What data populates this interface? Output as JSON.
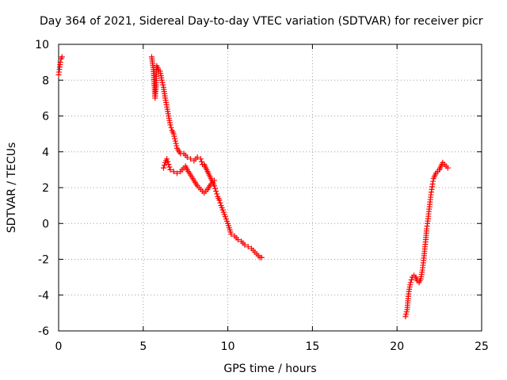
{
  "chart_data": {
    "type": "scatter",
    "title": "Day 364 of 2021, Sidereal Day-to-day VTEC variation (SDTVAR) for receiver picr",
    "xlabel": "GPS time / hours",
    "ylabel": "SDTVAR / TECUs",
    "xlim": [
      0,
      25
    ],
    "ylim": [
      -6,
      10
    ],
    "xticks": [
      0,
      5,
      10,
      15,
      20,
      25
    ],
    "yticks": [
      -6,
      -4,
      -2,
      0,
      2,
      4,
      6,
      8,
      10
    ],
    "grid": true,
    "marker": "+",
    "color": "#ff0000",
    "series": [
      {
        "name": "SDTVAR",
        "segments": [
          {
            "x": [
              0.0,
              0.05,
              0.1,
              0.15,
              0.2
            ],
            "y": [
              8.3,
              8.6,
              9.0,
              9.2,
              9.3
            ]
          },
          {
            "x": [
              5.5,
              5.6,
              5.7,
              5.75,
              5.8,
              5.9,
              6.0,
              6.1,
              6.2,
              6.3,
              6.4,
              6.5,
              6.6,
              6.7,
              6.8,
              6.9,
              7.0,
              7.2,
              7.4,
              7.6,
              7.8,
              8.0,
              8.2,
              8.4,
              8.5,
              8.6,
              8.7,
              8.8,
              8.9,
              9.0,
              9.1,
              9.2,
              9.3,
              9.4,
              9.5,
              9.6,
              9.8,
              10.0,
              10.2,
              10.4,
              10.6,
              10.8,
              11.0,
              11.2,
              11.4,
              11.5,
              11.6,
              11.7,
              11.8,
              11.9,
              12.0
            ],
            "y": [
              9.3,
              8.6,
              7.0,
              7.5,
              8.8,
              8.6,
              8.5,
              8.0,
              7.6,
              7.0,
              6.5,
              6.0,
              5.5,
              5.2,
              5.0,
              4.6,
              4.2,
              3.9,
              3.9,
              3.7,
              3.6,
              3.5,
              3.7,
              3.6,
              3.3,
              3.3,
              3.1,
              2.9,
              2.7,
              2.5,
              2.3,
              2.1,
              1.8,
              1.5,
              1.3,
              1.0,
              0.5,
              0.0,
              -0.6,
              -0.7,
              -0.9,
              -1.0,
              -1.2,
              -1.3,
              -1.4,
              -1.5,
              -1.6,
              -1.7,
              -1.8,
              -1.9,
              -1.9
            ]
          },
          {
            "x": [
              6.2,
              6.3,
              6.4,
              6.5,
              6.6,
              6.8,
              7.0,
              7.2,
              7.4,
              7.5,
              7.6,
              7.8,
              8.0,
              8.2,
              8.4,
              8.6,
              8.8,
              9.0,
              9.2
            ],
            "y": [
              3.1,
              3.4,
              3.6,
              3.3,
              3.0,
              2.9,
              2.8,
              2.9,
              3.1,
              3.2,
              3.0,
              2.7,
              2.4,
              2.1,
              1.9,
              1.7,
              1.9,
              2.2,
              2.4
            ]
          },
          {
            "x": [
              20.5,
              20.6,
              20.65,
              20.7,
              20.8,
              20.9,
              21.0,
              21.1,
              21.2,
              21.3,
              21.4,
              21.5,
              21.55,
              21.6,
              21.65,
              21.7,
              21.75,
              21.8,
              21.85,
              21.9,
              21.95,
              22.0,
              22.05,
              22.1,
              22.15,
              22.2,
              22.3,
              22.4,
              22.5,
              22.6,
              22.7,
              22.8,
              22.9,
              23.0
            ],
            "y": [
              -5.2,
              -4.8,
              -4.2,
              -3.8,
              -3.3,
              -3.0,
              -2.9,
              -3.0,
              -3.2,
              -3.3,
              -3.1,
              -2.6,
              -2.2,
              -1.8,
              -1.3,
              -0.9,
              -0.3,
              0.0,
              0.4,
              0.8,
              1.2,
              1.6,
              1.9,
              2.2,
              2.5,
              2.6,
              2.8,
              2.9,
              3.0,
              3.2,
              3.4,
              3.3,
              3.2,
              3.1
            ]
          }
        ]
      }
    ]
  }
}
